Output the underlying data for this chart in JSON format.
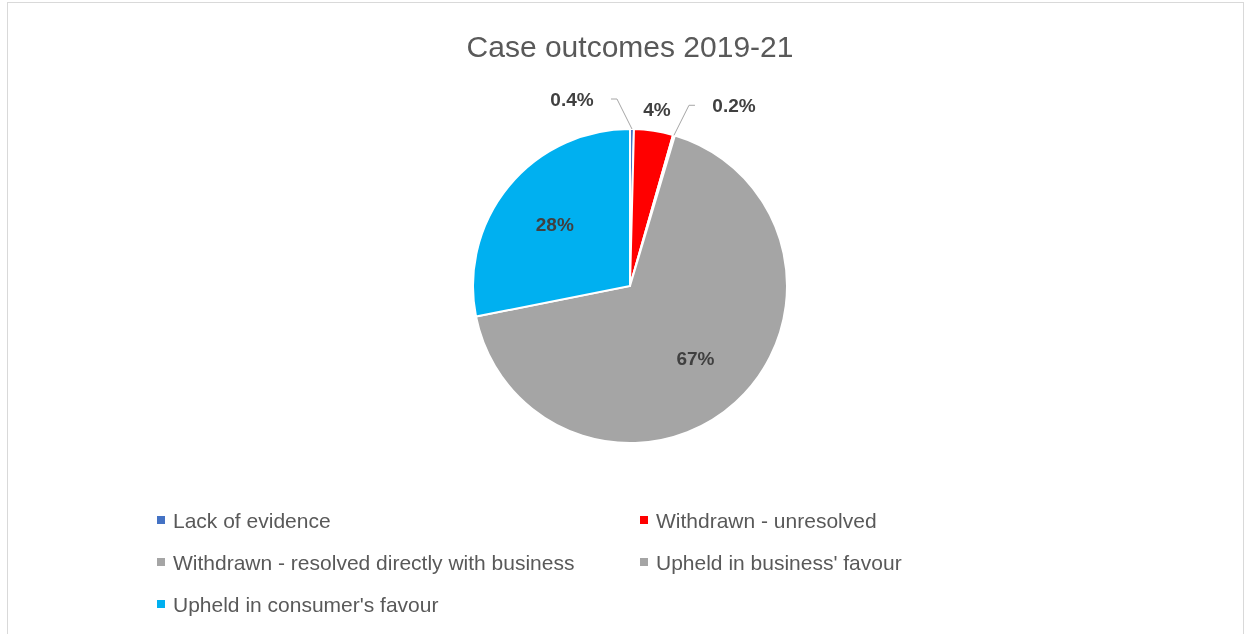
{
  "chart_data": {
    "type": "pie",
    "title": "Case outcomes 2019-21",
    "categories": [
      "Lack of evidence",
      "Withdrawn - unresolved",
      "Withdrawn - resolved directly with business",
      "Upheld in business' favour",
      "Upheld in consumer's favour"
    ],
    "values": [
      0.4,
      4,
      0.2,
      67,
      28
    ],
    "value_labels": [
      "0.4%",
      "4%",
      "0.2%",
      "67%",
      "28%"
    ],
    "colors": [
      "#4472c4",
      "#ff0000",
      "#a5a5a5",
      "#a5a5a5",
      "#00b0f0"
    ],
    "legend": "bottom"
  }
}
